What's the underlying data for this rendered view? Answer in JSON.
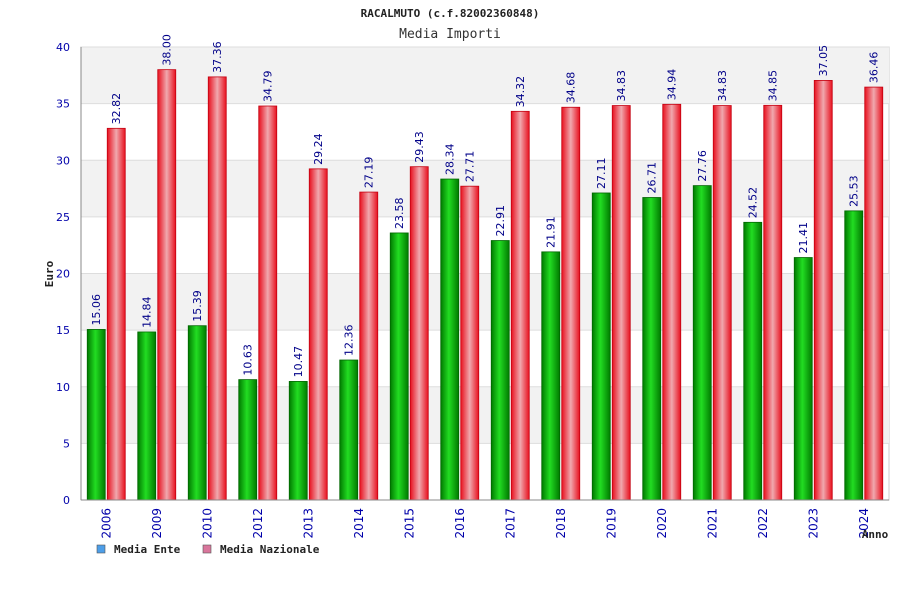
{
  "chart_data": {
    "type": "bar",
    "title": "RACALMUTO (c.f.82002360848)",
    "subtitle": "Media Importi",
    "xlabel": "Anno",
    "ylabel": "Euro",
    "ylim": [
      0,
      40
    ],
    "yticks": [
      0,
      5,
      10,
      15,
      20,
      25,
      30,
      35,
      40
    ],
    "grid": true,
    "legend_position": "bottom-left",
    "categories": [
      "2006",
      "2009",
      "2010",
      "2012",
      "2013",
      "2014",
      "2015",
      "2016",
      "2017",
      "2018",
      "2019",
      "2020",
      "2021",
      "2022",
      "2023",
      "2024"
    ],
    "series": [
      {
        "name": "Media Ente",
        "color": "#00aa00",
        "legend_color": "#4d9ee8",
        "values": [
          15.06,
          14.84,
          15.39,
          10.63,
          10.47,
          12.36,
          23.58,
          28.34,
          22.91,
          21.91,
          27.11,
          26.71,
          27.76,
          24.52,
          21.41,
          25.53
        ],
        "labels": [
          "15.06",
          "14.84",
          "15.39",
          "10.63",
          "10.47",
          "12.36",
          "23.58",
          "28.34",
          "22.91",
          "21.91",
          "27.11",
          "26.71",
          "27.76",
          "24.52",
          "21.41",
          "25.53"
        ]
      },
      {
        "name": "Media Nazionale",
        "color": "#e8101e",
        "legend_color": "#d9769c",
        "values": [
          32.82,
          38.0,
          37.36,
          34.79,
          29.24,
          27.19,
          29.43,
          27.71,
          34.32,
          34.68,
          34.83,
          34.94,
          34.83,
          34.85,
          37.05,
          36.46
        ],
        "labels": [
          "32.82",
          "38.00",
          "37.36",
          "34.79",
          "29.24",
          "27.19",
          "29.43",
          "27.71",
          "34.32",
          "34.68",
          "34.83",
          "34.94",
          "34.83",
          "34.85",
          "37.05",
          "36.46"
        ]
      }
    ]
  }
}
